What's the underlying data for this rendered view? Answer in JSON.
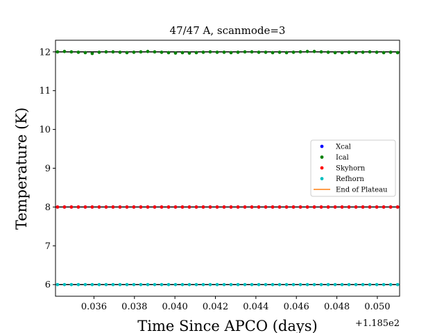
{
  "chart_data": {
    "type": "scatter",
    "title": "47/47 A, scanmode=3",
    "xlabel": "Time Since APCO (days)",
    "ylabel": "Temperature (K)",
    "x_offset_label": "+1.185e2",
    "x_tick_values": [
      0.036,
      0.038,
      0.04,
      0.042,
      0.044,
      0.046,
      0.048,
      0.05
    ],
    "x_tick_labels": [
      "0.036",
      "0.038",
      "0.040",
      "0.042",
      "0.044",
      "0.046",
      "0.048",
      "0.050"
    ],
    "y_tick_values": [
      6,
      7,
      8,
      9,
      10,
      11,
      12
    ],
    "y_tick_labels": [
      "6",
      "7",
      "8",
      "9",
      "10",
      "11",
      "12"
    ],
    "xlim": [
      0.0341,
      0.0511
    ],
    "ylim": [
      5.7,
      12.3
    ],
    "grid": false,
    "legend_position": "center-right",
    "series": [
      {
        "name": "Xcal",
        "color": "#0000ff",
        "marker": "dot",
        "x_start": 0.0342,
        "x_end": 0.051,
        "count": 50,
        "values": [
          8.0,
          8.0,
          8.0,
          8.0,
          8.0,
          8.0,
          8.0,
          8.0,
          8.0,
          8.0,
          8.0,
          8.0,
          8.0,
          8.0,
          8.0,
          8.0,
          8.0,
          8.0,
          8.0,
          8.0,
          8.0,
          8.0,
          8.0,
          8.0,
          8.0,
          8.0,
          8.0,
          8.0,
          8.0,
          8.0,
          8.0,
          8.0,
          8.0,
          8.0,
          8.0,
          8.0,
          8.0,
          8.0,
          8.0,
          8.0,
          8.0,
          8.0,
          8.0,
          8.0,
          8.0,
          8.0,
          8.0,
          8.0,
          8.0,
          8.0
        ]
      },
      {
        "name": "Ical",
        "color": "#008000",
        "marker": "dot",
        "x_start": 0.0342,
        "x_end": 0.051,
        "count": 50,
        "values": [
          12.0,
          12.01,
          12.0,
          11.99,
          11.98,
          11.96,
          11.99,
          12.0,
          12.0,
          11.99,
          11.98,
          11.99,
          12.0,
          12.01,
          12.0,
          11.99,
          11.98,
          11.97,
          11.98,
          11.97,
          11.98,
          11.99,
          12.0,
          11.99,
          11.99,
          11.98,
          11.99,
          12.0,
          12.0,
          11.99,
          11.99,
          11.98,
          11.99,
          11.98,
          11.99,
          12.0,
          12.01,
          12.01,
          12.0,
          11.99,
          11.98,
          11.98,
          11.99,
          11.98,
          11.99,
          12.0,
          11.99,
          11.98,
          11.99,
          11.98
        ]
      },
      {
        "name": "Skyhorn",
        "color": "#ff0000",
        "marker": "dot",
        "x_start": 0.0342,
        "x_end": 0.051,
        "count": 50,
        "values": [
          8.0,
          8.0,
          8.0,
          8.0,
          8.0,
          8.0,
          8.0,
          8.0,
          8.0,
          8.0,
          8.0,
          8.0,
          8.0,
          8.0,
          8.0,
          8.0,
          8.0,
          8.0,
          8.0,
          8.0,
          8.0,
          8.0,
          8.0,
          8.0,
          8.0,
          8.0,
          8.0,
          8.0,
          8.0,
          8.0,
          8.0,
          8.0,
          8.0,
          8.0,
          8.0,
          8.0,
          8.0,
          8.0,
          8.0,
          8.0,
          8.0,
          8.0,
          8.0,
          8.0,
          8.0,
          8.0,
          8.0,
          8.0,
          8.0,
          8.0
        ]
      },
      {
        "name": "Refhorn",
        "color": "#00bfbf",
        "marker": "dot",
        "x_start": 0.0342,
        "x_end": 0.051,
        "count": 50,
        "values": [
          6.0,
          6.0,
          6.0,
          6.0,
          6.0,
          6.0,
          6.0,
          6.0,
          6.0,
          6.0,
          6.0,
          6.0,
          6.0,
          6.0,
          6.0,
          6.0,
          6.0,
          6.0,
          6.0,
          6.0,
          6.0,
          6.0,
          6.0,
          6.0,
          6.0,
          6.0,
          6.0,
          6.0,
          6.0,
          6.0,
          6.0,
          6.0,
          6.0,
          6.0,
          6.0,
          6.0,
          6.0,
          6.0,
          6.0,
          6.0,
          6.0,
          6.0,
          6.0,
          6.0,
          6.0,
          6.0,
          6.0,
          6.0,
          6.0,
          6.0
        ]
      }
    ],
    "reference_lines": [
      {
        "y": 12.0,
        "color": "#000000"
      },
      {
        "y": 8.0,
        "color": "#000000"
      },
      {
        "y": 6.0,
        "color": "#000000"
      }
    ],
    "legend_extra": {
      "name": "End of Plateau",
      "color": "#ff7f0e",
      "marker": "line"
    }
  }
}
